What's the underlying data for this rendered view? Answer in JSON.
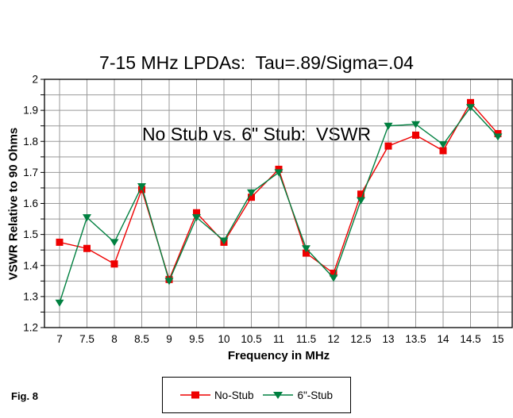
{
  "title": {
    "line1": "7-15 MHz LPDAs:  Tau=.89/Sigma=.04",
    "line2": "No Stub vs. 6\" Stub:  VSWR"
  },
  "figure_label": "Fig. 8",
  "colors": {
    "no_stub_red": "#ee0000",
    "stub_green": "#008040",
    "gridline_gray": "#999999",
    "axis_black": "#000000",
    "background": "#ffffff"
  },
  "chart_data": {
    "type": "line",
    "title": "7-15 MHz LPDAs: Tau=.89/Sigma=.04 — No Stub vs. 6\" Stub: VSWR",
    "xlabel": "Frequency in MHz",
    "ylabel": "VSWR Relative to 90 Ohms",
    "grid": true,
    "legend_position": "bottom",
    "ylim": [
      1.2,
      2.0
    ],
    "y_major_tick_step": 0.1,
    "y_gridline_step": 0.05,
    "y_tick_labels": [
      "2",
      "1.9",
      "1.8",
      "1.7",
      "1.6",
      "1.5",
      "1.4",
      "1.3",
      "1.2"
    ],
    "x": [
      7,
      7.5,
      8,
      8.5,
      9,
      9.5,
      10,
      10.5,
      11,
      11.5,
      12,
      12.5,
      13,
      13.5,
      14,
      14.5,
      15
    ],
    "x_tick_labels": [
      "7",
      "7.5",
      "8",
      "8.5",
      "9",
      "9.5",
      "10",
      "10.5",
      "11",
      "11.5",
      "12",
      "12.5",
      "13",
      "13.5",
      "14",
      "14.5",
      "15"
    ],
    "series": [
      {
        "name": "No-Stub",
        "marker": "square",
        "color": "#ee0000",
        "values": [
          1.475,
          1.455,
          1.405,
          1.645,
          1.355,
          1.57,
          1.475,
          1.62,
          1.71,
          1.44,
          1.375,
          1.63,
          1.785,
          1.82,
          1.77,
          1.925,
          1.825
        ]
      },
      {
        "name": "6\"-Stub",
        "marker": "triangle-down",
        "color": "#008040",
        "values": [
          1.28,
          1.555,
          1.475,
          1.655,
          1.35,
          1.555,
          1.48,
          1.635,
          1.7,
          1.455,
          1.36,
          1.61,
          1.85,
          1.855,
          1.79,
          1.91,
          1.815
        ]
      }
    ]
  }
}
